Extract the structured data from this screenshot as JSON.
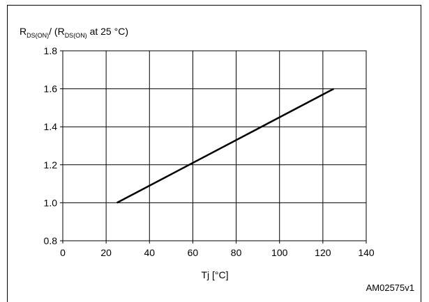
{
  "header": {
    "title": ""
  },
  "chart_data": {
    "type": "line",
    "ylabel": {
      "r1": "R",
      "sub1": "DS(ON)",
      "mid": "/ (R",
      "sub2": "DS(ON)",
      "end": " at 25 °C)"
    },
    "xlabel": "Tj [°C]",
    "annotation": "AM02575v1",
    "xlim": [
      0,
      140
    ],
    "ylim": [
      0.8,
      1.8
    ],
    "xticks": [
      0,
      20,
      40,
      60,
      80,
      100,
      120,
      140
    ],
    "yticks": [
      0.8,
      1.0,
      1.2,
      1.4,
      1.6,
      1.8
    ],
    "xtick_labels": [
      "0",
      "20",
      "40",
      "60",
      "80",
      "100",
      "120",
      "140"
    ],
    "ytick_labels": [
      "0.8",
      "1.0",
      "1.2",
      "1.4",
      "1.6",
      "1.8"
    ],
    "grid": true,
    "series": [
      {
        "x": [
          25,
          125
        ],
        "y": [
          1.0,
          1.6
        ]
      }
    ]
  }
}
